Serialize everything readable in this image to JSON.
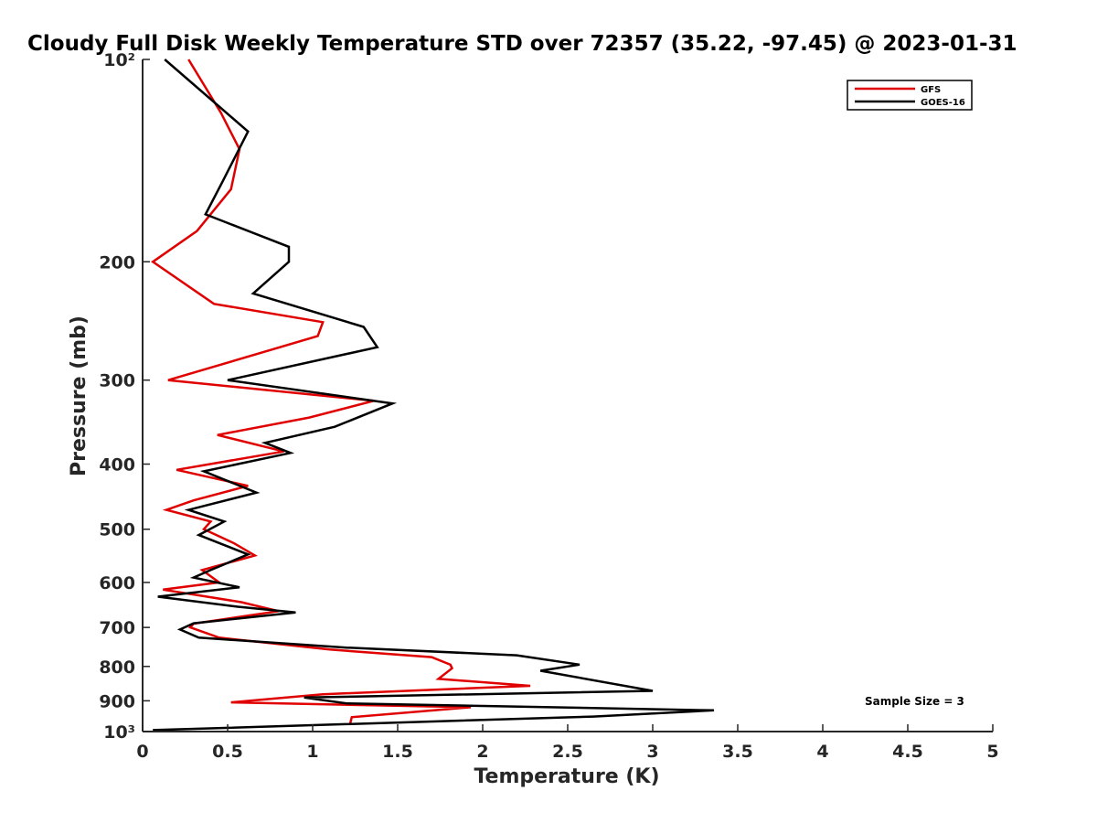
{
  "chart_data": {
    "type": "line",
    "title": "Cloudy Full Disk Weekly Temperature STD over 72357 (35.22, -97.45) @ 2023-01-31",
    "xlabel": "Temperature (K)",
    "ylabel": "Pressure (mb)",
    "xlim": [
      0,
      5
    ],
    "ylim": [
      100,
      1000
    ],
    "yscale": "log",
    "y_reversed": true,
    "grid": false,
    "legend_position": "top-right",
    "x_ticks": [
      0,
      0.5,
      1,
      1.5,
      2,
      2.5,
      3,
      3.5,
      4,
      4.5,
      5
    ],
    "x_tick_labels": [
      "0",
      "0.5",
      "1",
      "1.5",
      "2",
      "2.5",
      "3",
      "3.5",
      "4",
      "4.5",
      "5"
    ],
    "y_ticks": [
      100,
      200,
      300,
      400,
      500,
      600,
      700,
      800,
      900,
      1000
    ],
    "y_tick_labels": [
      "10²",
      "200",
      "300",
      "400",
      "500",
      "600",
      "700",
      "800",
      "900",
      "10³"
    ],
    "annotation": "Sample Size = 3",
    "series": [
      {
        "name": "GFS",
        "color": "#e00000",
        "points": [
          [
            0.27,
            100
          ],
          [
            0.46,
            120
          ],
          [
            0.57,
            136
          ],
          [
            0.52,
            156
          ],
          [
            0.32,
            180
          ],
          [
            0.06,
            200
          ],
          [
            0.42,
            231
          ],
          [
            1.06,
            246
          ],
          [
            1.03,
            258
          ],
          [
            0.15,
            300
          ],
          [
            1.36,
            322
          ],
          [
            0.98,
            341
          ],
          [
            0.44,
            362
          ],
          [
            0.83,
            383
          ],
          [
            0.2,
            408
          ],
          [
            0.62,
            431
          ],
          [
            0.3,
            453
          ],
          [
            0.14,
            468
          ],
          [
            0.4,
            487
          ],
          [
            0.36,
            500
          ],
          [
            0.54,
            525
          ],
          [
            0.66,
            547
          ],
          [
            0.35,
            575
          ],
          [
            0.45,
            600
          ],
          [
            0.12,
            615
          ],
          [
            0.58,
            642
          ],
          [
            0.8,
            662
          ],
          [
            0.3,
            691
          ],
          [
            0.28,
            700
          ],
          [
            0.45,
            725
          ],
          [
            1.1,
            755
          ],
          [
            1.7,
            775
          ],
          [
            1.81,
            795
          ],
          [
            1.82,
            805
          ],
          [
            1.74,
            835
          ],
          [
            2.28,
            855
          ],
          [
            1.06,
            880
          ],
          [
            0.52,
            905
          ],
          [
            1.93,
            920
          ],
          [
            1.23,
            952
          ],
          [
            1.22,
            975
          ]
        ]
      },
      {
        "name": "GOES-16",
        "color": "#000000",
        "points": [
          [
            0.13,
            100
          ],
          [
            0.62,
            128
          ],
          [
            0.47,
            152
          ],
          [
            0.37,
            170
          ],
          [
            0.86,
            190
          ],
          [
            0.86,
            200
          ],
          [
            0.65,
            223
          ],
          [
            1.3,
            250
          ],
          [
            1.38,
            268
          ],
          [
            0.5,
            300
          ],
          [
            1.47,
            325
          ],
          [
            1.13,
            352
          ],
          [
            0.72,
            372
          ],
          [
            0.87,
            385
          ],
          [
            0.36,
            410
          ],
          [
            0.67,
            441
          ],
          [
            0.27,
            468
          ],
          [
            0.48,
            487
          ],
          [
            0.33,
            510
          ],
          [
            0.62,
            545
          ],
          [
            0.4,
            575
          ],
          [
            0.3,
            590
          ],
          [
            0.57,
            610
          ],
          [
            0.09,
            630
          ],
          [
            0.56,
            652
          ],
          [
            0.9,
            665
          ],
          [
            0.3,
            690
          ],
          [
            0.22,
            705
          ],
          [
            0.33,
            725
          ],
          [
            1.2,
            750
          ],
          [
            2.2,
            770
          ],
          [
            2.57,
            795
          ],
          [
            2.34,
            812
          ],
          [
            3.0,
            870
          ],
          [
            0.95,
            890
          ],
          [
            1.2,
            908
          ],
          [
            3.36,
            930
          ],
          [
            2.65,
            950
          ],
          [
            0.06,
            995
          ]
        ]
      }
    ]
  }
}
